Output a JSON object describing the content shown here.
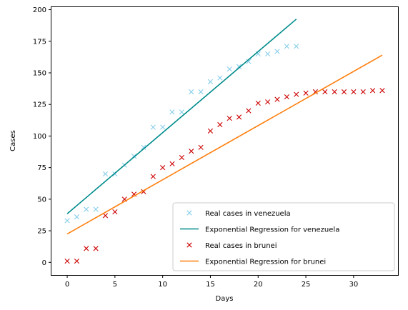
{
  "chart_data": {
    "type": "scatter",
    "title": "",
    "xlabel": "Days",
    "ylabel": "Cases",
    "xlim": [
      -1.65,
      34.65
    ],
    "ylim": [
      -10,
      202
    ],
    "xticks": [
      0,
      5,
      10,
      15,
      20,
      25,
      30
    ],
    "yticks": [
      0,
      25,
      50,
      75,
      100,
      125,
      150,
      175,
      200
    ],
    "grid": false,
    "legend_position": "lower-right",
    "series": [
      {
        "name": "Real cases in venezuela",
        "kind": "scatter",
        "marker": "x",
        "color": "#87ceeb",
        "x": [
          0,
          1,
          2,
          3,
          4,
          5,
          6,
          7,
          8,
          9,
          10,
          11,
          12,
          13,
          14,
          15,
          16,
          17,
          18,
          19,
          20,
          21,
          22,
          23,
          24
        ],
        "y": [
          33,
          36,
          42,
          42,
          70,
          70,
          77,
          84,
          91,
          107,
          107,
          119,
          119,
          135,
          135,
          143,
          146,
          153,
          155,
          159,
          165,
          165,
          167,
          171,
          171
        ]
      },
      {
        "name": "Exponential Regression for venezuela",
        "kind": "line",
        "color": "#008b8b",
        "x": [
          0,
          24
        ],
        "y": [
          38.5,
          192.5
        ]
      },
      {
        "name": "Real cases in brunei",
        "kind": "scatter",
        "marker": "x",
        "color": "#cc0000",
        "x": [
          0,
          1,
          2,
          3,
          4,
          5,
          6,
          7,
          8,
          9,
          10,
          11,
          12,
          13,
          14,
          15,
          16,
          17,
          18,
          19,
          20,
          21,
          22,
          23,
          24,
          25,
          26,
          27,
          28,
          29,
          30,
          31,
          32,
          33
        ],
        "y": [
          1,
          1,
          11,
          11,
          37,
          40,
          50,
          54,
          56,
          68,
          75,
          78,
          83,
          88,
          91,
          104,
          109,
          114,
          115,
          120,
          126,
          127,
          129,
          131,
          133,
          134,
          135,
          135,
          135,
          135,
          135,
          135,
          136,
          136
        ]
      },
      {
        "name": "Exponential Regression for brunei",
        "kind": "line",
        "color": "#ff7f0e",
        "x": [
          0,
          33
        ],
        "y": [
          22.5,
          164
        ]
      }
    ]
  }
}
